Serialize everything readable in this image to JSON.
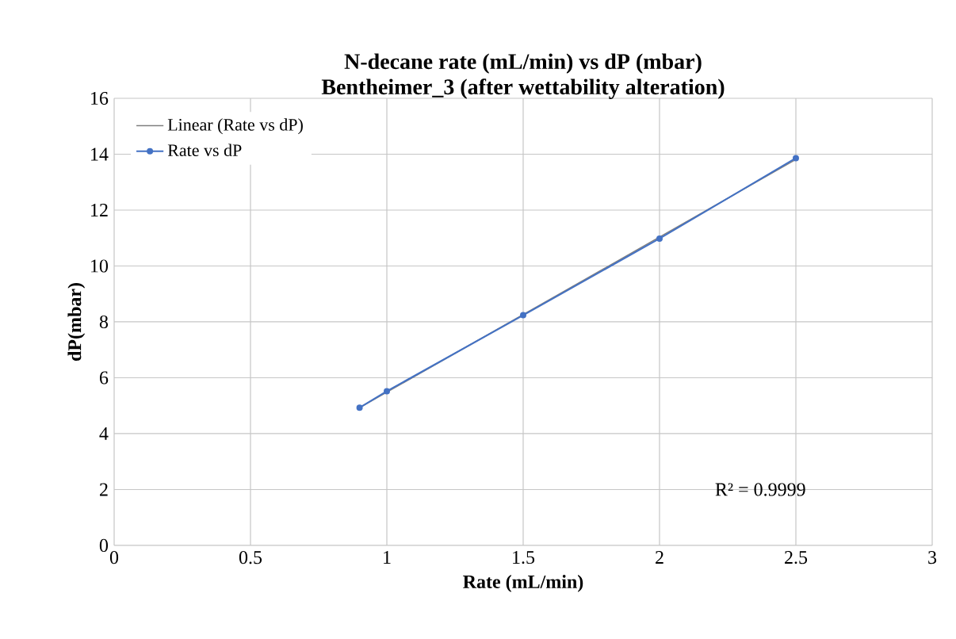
{
  "chart_data": {
    "type": "line",
    "title": "N-decane rate (mL/min) vs dP (mbar)",
    "subtitle": "Bentheimer_3 (after wettability alteration)",
    "xlabel": "Rate (mL/min)",
    "ylabel": "dP(mbar)",
    "x": [
      0.9,
      1.0,
      1.5,
      2.0,
      2.5
    ],
    "series": [
      {
        "name": "Rate vs dP",
        "color": "#4472c4",
        "values": [
          4.93,
          5.52,
          8.24,
          10.98,
          13.86
        ]
      },
      {
        "name": "Linear (Rate vs dP)",
        "color": "#7f7f7f",
        "type": "line",
        "marker": "none",
        "x": [
          0.9,
          2.5
        ],
        "values": [
          4.93,
          13.81
        ]
      }
    ],
    "xlim": [
      0,
      3
    ],
    "ylim": [
      0,
      16
    ],
    "xticks": [
      0,
      0.5,
      1,
      1.5,
      2,
      2.5,
      3
    ],
    "yticks": [
      0,
      2,
      4,
      6,
      8,
      10,
      12,
      14,
      16
    ],
    "grid": true,
    "legend": "top left",
    "marker": "circle",
    "line_style": "solid",
    "annotations": [
      "R² = 0.9999"
    ]
  }
}
